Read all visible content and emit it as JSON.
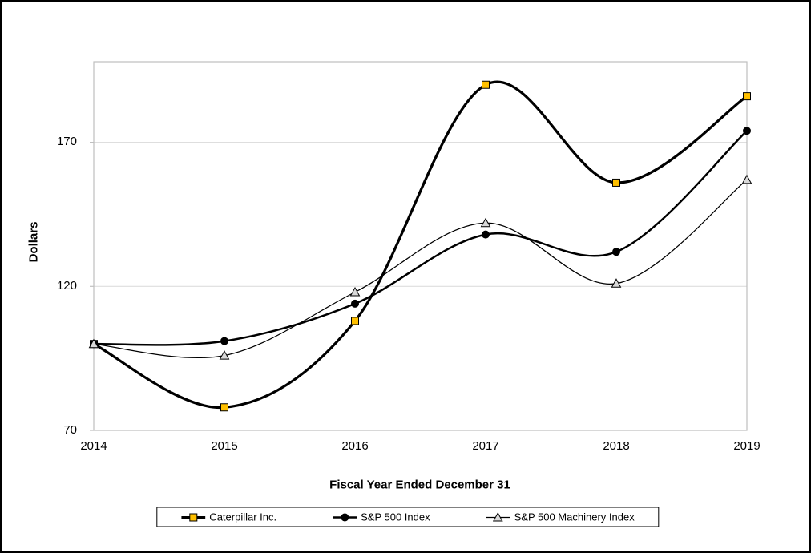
{
  "chart_data": {
    "type": "line",
    "title": "",
    "categories": [
      "2014",
      "2015",
      "2016",
      "2017",
      "2018",
      "2019"
    ],
    "series": [
      {
        "name": "Caterpillar Inc.",
        "values": [
          100,
          78,
          108,
          190,
          156,
          186
        ],
        "marker": "square",
        "marker_color": "#FFC000",
        "line_color": "#000000",
        "line_width": 3.25
      },
      {
        "name": "S&P 500 Index",
        "values": [
          100,
          101,
          114,
          138,
          132,
          174
        ],
        "marker": "circle",
        "marker_color": "#000000",
        "line_color": "#000000",
        "line_width": 2.5
      },
      {
        "name": "S&P 500 Machinery Index",
        "values": [
          100,
          96,
          118,
          142,
          121,
          157
        ],
        "marker": "triangle",
        "marker_color": "#D9D9D9",
        "line_color": "#000000",
        "line_width": 1.25
      }
    ],
    "xlabel": "Fiscal Year Ended December 31",
    "ylabel": "Dollars",
    "ylim": [
      70,
      198
    ],
    "yticks": [
      70,
      120,
      170
    ],
    "grid": true,
    "grid_color": "#D9D9D9",
    "axis_color": "#BFBFBF",
    "legend_position": "bottom",
    "smooth": true
  }
}
